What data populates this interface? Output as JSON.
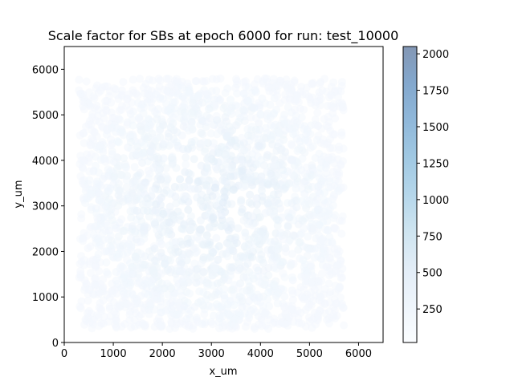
{
  "chart_data": {
    "type": "scatter",
    "title": "Scale factor for SBs at epoch 6000 for run: test_10000",
    "xlabel": "x_um",
    "ylabel": "y_um",
    "xlim": [
      0,
      6500
    ],
    "ylim": [
      0,
      6500
    ],
    "x_ticks": [
      0,
      1000,
      2000,
      3000,
      4000,
      5000,
      6000
    ],
    "y_ticks": [
      0,
      1000,
      2000,
      3000,
      4000,
      5000,
      6000
    ],
    "point_count_estimate": 2500,
    "point_extent": {
      "x": [
        300,
        5700
      ],
      "y": [
        300,
        5800
      ]
    },
    "typical_value_range": [
      20,
      300
    ],
    "point_alpha": 0.5,
    "colorbar": {
      "colormap": "Blues",
      "range": [
        20,
        2050
      ],
      "ticks": [
        250,
        500,
        750,
        1000,
        1250,
        1500,
        1750,
        2000
      ]
    },
    "grid": false,
    "legend": "none"
  }
}
